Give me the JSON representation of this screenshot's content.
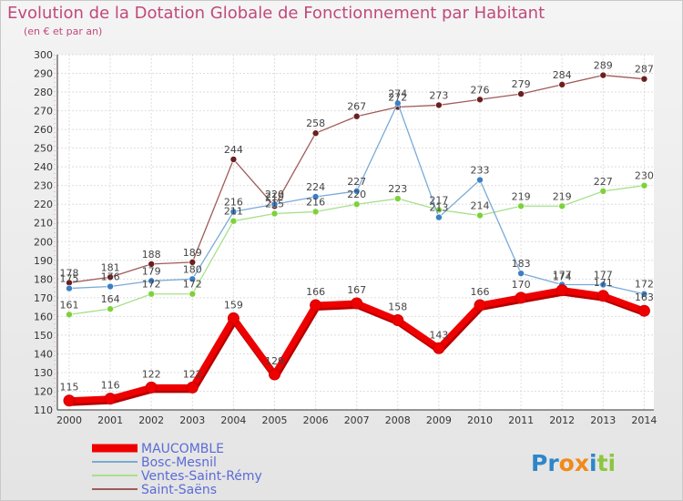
{
  "chart_data": {
    "type": "line",
    "title": "Evolution de la Dotation Globale de Fonctionnement par Habitant",
    "subtitle": "(en € et par an)",
    "xlabel": "",
    "ylabel": "",
    "ylim": [
      110,
      300
    ],
    "ytick_step": 10,
    "grid": true,
    "legend_position": "bottom-left",
    "x": [
      "2000",
      "2001",
      "2002",
      "2003",
      "2004",
      "2005",
      "2006",
      "2007",
      "2008",
      "2009",
      "2010",
      "2011",
      "2012",
      "2013",
      "2014"
    ],
    "series": [
      {
        "name": "Saint-Saëns",
        "color": "#6b1f1f",
        "line_color": "#a05a5a",
        "values": [
          178,
          181,
          188,
          189,
          244,
          219,
          258,
          267,
          272,
          273,
          276,
          279,
          284,
          289,
          287
        ]
      },
      {
        "name": "Ventes-Saint-Rémy",
        "color": "#7dd13a",
        "line_color": "#a6e08a",
        "values": [
          161,
          164,
          172,
          172,
          211,
          215,
          216,
          220,
          223,
          217,
          214,
          219,
          219,
          227,
          230
        ]
      },
      {
        "name": "Bosc-Mesnil",
        "color": "#3b7fc4",
        "line_color": "#7aaad6",
        "values": [
          175,
          176,
          179,
          180,
          216,
          220,
          224,
          227,
          274,
          213,
          233,
          183,
          177,
          177,
          172
        ]
      },
      {
        "name": "MAUCOMBLE",
        "color": "#ee0000",
        "line_color": "#ee0000",
        "values": [
          115,
          116,
          122,
          122,
          159,
          129,
          166,
          167,
          158,
          143,
          166,
          170,
          174,
          171,
          163
        ]
      }
    ],
    "legend_order": [
      "MAUCOMBLE",
      "Bosc-Mesnil",
      "Ventes-Saint-Rémy",
      "Saint-Saëns"
    ]
  },
  "logo": {
    "text": "Proxiti",
    "letters": [
      "P",
      "r",
      "o",
      "x",
      "i",
      "t",
      "i"
    ],
    "colors": [
      "#2e86c9",
      "#2e86c9",
      "#f08a1a",
      "#f08a1a",
      "#2e86c9",
      "#8dc63f",
      "#8dc63f"
    ]
  }
}
